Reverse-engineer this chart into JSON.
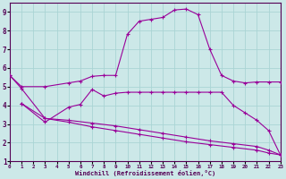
{
  "xlabel": "Windchill (Refroidissement éolien,°C)",
  "background_color": "#cce8e8",
  "line_color": "#990099",
  "grid_color": "#aad4d4",
  "xlim": [
    0,
    23
  ],
  "ylim": [
    1,
    9.5
  ],
  "xticks": [
    0,
    1,
    2,
    3,
    4,
    5,
    6,
    7,
    8,
    9,
    10,
    11,
    12,
    13,
    14,
    15,
    16,
    17,
    18,
    19,
    20,
    21,
    22,
    23
  ],
  "yticks": [
    1,
    2,
    3,
    4,
    5,
    6,
    7,
    8,
    9
  ],
  "line1": {
    "x": [
      0,
      1,
      3,
      5,
      6,
      7,
      8,
      9,
      10,
      11,
      12,
      13,
      14,
      15,
      16,
      17,
      18,
      19,
      20,
      21,
      22,
      23
    ],
    "y": [
      5.6,
      5.0,
      5.0,
      5.2,
      5.3,
      5.55,
      5.6,
      5.6,
      7.8,
      8.5,
      8.6,
      8.7,
      9.1,
      9.15,
      8.85,
      7.0,
      5.6,
      5.3,
      5.2,
      5.25,
      5.25,
      5.25
    ]
  },
  "line2": {
    "x": [
      1,
      3,
      5,
      6,
      7,
      8,
      9,
      10,
      11,
      12,
      13,
      14,
      15,
      16,
      17,
      18,
      19,
      20,
      21,
      22,
      23
    ],
    "y": [
      4.1,
      3.1,
      3.9,
      4.05,
      4.85,
      4.5,
      4.65,
      4.7,
      4.7,
      4.7,
      4.7,
      4.7,
      4.7,
      4.7,
      4.7,
      4.7,
      4.0,
      3.6,
      3.2,
      2.65,
      1.35
    ]
  },
  "line3": {
    "x": [
      1,
      3,
      5,
      7,
      9,
      11,
      13,
      15,
      17,
      19,
      21,
      22,
      23
    ],
    "y": [
      4.1,
      3.3,
      3.2,
      3.05,
      2.9,
      2.7,
      2.5,
      2.3,
      2.1,
      1.95,
      1.8,
      1.6,
      1.35
    ]
  },
  "line4": {
    "x": [
      0,
      1,
      3,
      5,
      7,
      9,
      11,
      13,
      15,
      17,
      19,
      21,
      22,
      23
    ],
    "y": [
      5.6,
      4.9,
      3.3,
      3.1,
      2.85,
      2.65,
      2.45,
      2.25,
      2.05,
      1.9,
      1.75,
      1.6,
      1.45,
      1.35
    ]
  }
}
